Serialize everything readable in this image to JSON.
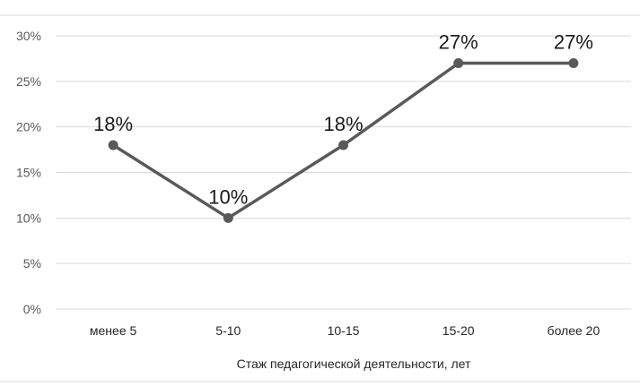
{
  "chart_data": {
    "type": "line",
    "categories": [
      "менее 5",
      "5-10",
      "10-15",
      "15-20",
      "более 20"
    ],
    "series": [
      {
        "values": [
          18,
          10,
          18,
          27,
          27
        ]
      }
    ],
    "data_labels": [
      "18%",
      "10%",
      "18%",
      "27%",
      "27%"
    ],
    "y_ticks": [
      0,
      5,
      10,
      15,
      20,
      25,
      30
    ],
    "y_tick_labels": [
      "0%",
      "5%",
      "10%",
      "15%",
      "20%",
      "25%",
      "30%"
    ],
    "ylim": [
      0,
      30
    ],
    "xlabel": "Стаж педагогической деятельности, лет",
    "ylabel": "",
    "title": "",
    "grid": true,
    "legend": "none",
    "colors": {
      "line": "#595959",
      "grid": "#d9d9d9"
    }
  }
}
